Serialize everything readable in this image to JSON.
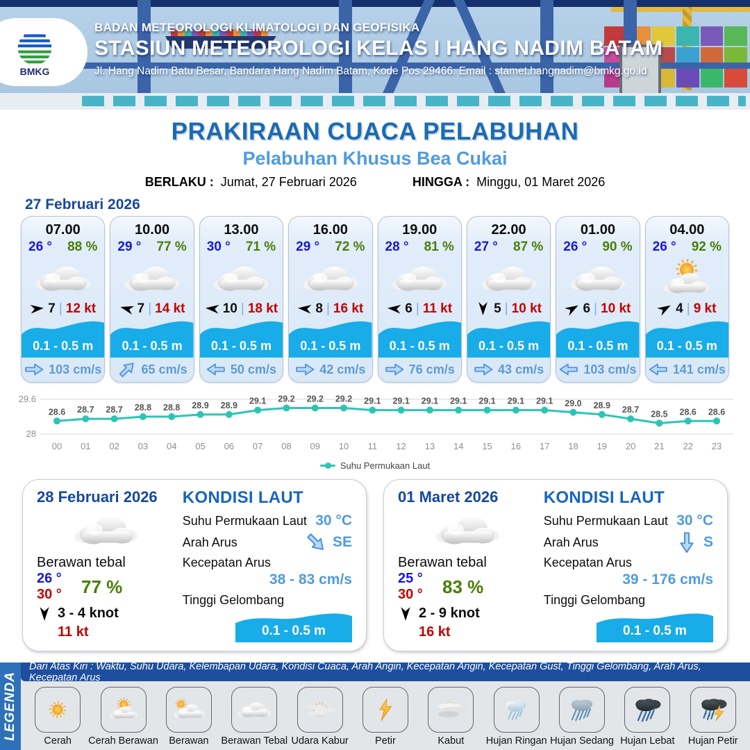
{
  "header": {
    "agency": "BADAN METEOROLOGI KLIMATOLOGI DAN GEOFISIKA",
    "station": "STASIUN METEOROLOGI KELAS I HANG NADIM BATAM",
    "address": "Jl. Hang Nadim Batu Besar, Bandara Hang Nadim Batam, Kode Pos 29466. Email : stamet.hangnadim@bmkg.go.id",
    "logo_label": "BMKG"
  },
  "title": {
    "main": "PRAKIRAAN CUACA PELABUHAN",
    "subtitle": "Pelabuhan Khusus Bea Cukai",
    "berlaku_label": "BERLAKU :",
    "berlaku_value": "Jumat, 27 Februari 2026",
    "hingga_label": "HINGGA :",
    "hingga_value": "Minggu, 01 Maret 2026"
  },
  "forecast": {
    "date": "27 Februari 2026",
    "cards": [
      {
        "time": "07.00",
        "temp": "26 °",
        "hum": "88 %",
        "icon": "cloud",
        "wind_deg": -5,
        "wind": "7",
        "gust": "12 kt",
        "wave": "0.1 - 0.5 m",
        "cur_deg": 0,
        "cur": "103 cm/s"
      },
      {
        "time": "10.00",
        "temp": "29 °",
        "hum": "77 %",
        "icon": "cloud",
        "wind_deg": 195,
        "wind": "7",
        "gust": "14 kt",
        "wave": "0.1 - 0.5 m",
        "cur_deg": -45,
        "cur": "65 cm/s"
      },
      {
        "time": "13.00",
        "temp": "30 °",
        "hum": "71 %",
        "icon": "cloud",
        "wind_deg": 185,
        "wind": "10",
        "gust": "18 kt",
        "wave": "0.1 - 0.5 m",
        "cur_deg": 180,
        "cur": "50 cm/s"
      },
      {
        "time": "16.00",
        "temp": "29 °",
        "hum": "72 %",
        "icon": "cloud",
        "wind_deg": 185,
        "wind": "8",
        "gust": "16 kt",
        "wave": "0.1 - 0.5 m",
        "cur_deg": 0,
        "cur": "42 cm/s"
      },
      {
        "time": "19.00",
        "temp": "28 °",
        "hum": "81 %",
        "icon": "cloud",
        "wind_deg": 185,
        "wind": "6",
        "gust": "11 kt",
        "wave": "0.1 - 0.5 m",
        "cur_deg": 0,
        "cur": "76 cm/s"
      },
      {
        "time": "22.00",
        "temp": "27 °",
        "hum": "87 %",
        "icon": "cloud",
        "wind_deg": 90,
        "wind": "5",
        "gust": "10 kt",
        "wave": "0.1 - 0.5 m",
        "cur_deg": 0,
        "cur": "43 cm/s"
      },
      {
        "time": "01.00",
        "temp": "26 °",
        "hum": "90 %",
        "icon": "cloud",
        "wind_deg": -30,
        "wind": "6",
        "gust": "10 kt",
        "wave": "0.1 - 0.5 m",
        "cur_deg": 180,
        "cur": "103 cm/s"
      },
      {
        "time": "04.00",
        "temp": "26 °",
        "hum": "92 %",
        "icon": "sun-cloud",
        "wind_deg": -30,
        "wind": "4",
        "gust": "9 kt",
        "wave": "0.1 - 0.5 m",
        "cur_deg": 180,
        "cur": "141 cm/s"
      }
    ]
  },
  "chart_data": {
    "type": "line",
    "x": [
      "00",
      "01",
      "02",
      "03",
      "04",
      "05",
      "06",
      "07",
      "08",
      "09",
      "10",
      "11",
      "12",
      "13",
      "14",
      "15",
      "16",
      "17",
      "18",
      "19",
      "20",
      "21",
      "22",
      "23"
    ],
    "series": [
      {
        "name": "Suhu Permukaan Laut",
        "values": [
          28.6,
          28.7,
          28.7,
          28.8,
          28.8,
          28.9,
          28.9,
          29.1,
          29.2,
          29.2,
          29.2,
          29.1,
          29.1,
          29.1,
          29.1,
          29.1,
          29.1,
          29.1,
          29.0,
          28.9,
          28.7,
          28.5,
          28.6,
          28.6
        ]
      }
    ],
    "ylim": [
      28,
      29.6
    ],
    "yticks": [
      28,
      29.6
    ],
    "line_color": "#2cc5b4",
    "grid": true,
    "legend_position": "bottom"
  },
  "daily": [
    {
      "date": "28 Februari 2026",
      "icon": "cloud",
      "condition": "Berawan tebal",
      "temp_min": "26 °",
      "temp_max": "30 °",
      "humidity": "77 %",
      "wind_deg": 90,
      "wind": "3 - 4 knot",
      "gust": "11 kt",
      "sea": {
        "title": "KONDISI LAUT",
        "sst_label": "Suhu Permukaan Laut",
        "sst": "30 °C",
        "dir_label": "Arah Arus",
        "dir": "SE",
        "dir_deg": 45,
        "speed_label": "Kecepatan Arus",
        "speed": "38 - 83 cm/s",
        "wave_label": "Tinggi Gelombang",
        "wave": "0.1 - 0.5 m"
      }
    },
    {
      "date": "01 Maret 2026",
      "icon": "cloud",
      "condition": "Berawan tebal",
      "temp_min": "25 °",
      "temp_max": "30 °",
      "humidity": "83 %",
      "wind_deg": 90,
      "wind": "2 - 9 knot",
      "gust": "16 kt",
      "sea": {
        "title": "KONDISI LAUT",
        "sst_label": "Suhu Permukaan Laut",
        "sst": "30 °C",
        "dir_label": "Arah Arus",
        "dir": "S",
        "dir_deg": 90,
        "speed_label": "Kecepatan Arus",
        "speed": "39 - 176 cm/s",
        "wave_label": "Tinggi Gelombang",
        "wave": "0.1 - 0.5 m"
      }
    }
  ],
  "legend": {
    "title": "LEGENDA",
    "note": "Dari Atas Kiri : Waktu, Suhu Udara, Kelembapan Udara, Kondisi Cuaca, Arah Angin, Kecepatan Angin, Kecepatan Gust, Tinggi Gelombang, Arah Arus, Kecepatan Arus",
    "items": [
      {
        "label": "Cerah",
        "icon": "sun"
      },
      {
        "label": "Cerah Berawan",
        "icon": "sun-cloud"
      },
      {
        "label": "Berawan",
        "icon": "cloud-sun"
      },
      {
        "label": "Berawan Tebal",
        "icon": "cloud"
      },
      {
        "label": "Udara Kabur",
        "icon": "haze"
      },
      {
        "label": "Petir",
        "icon": "bolt"
      },
      {
        "label": "Kabut",
        "icon": "fog"
      },
      {
        "label": "Hujan Ringan",
        "icon": "rain-light"
      },
      {
        "label": "Hujan Sedang",
        "icon": "rain-med"
      },
      {
        "label": "Hujan Lebat",
        "icon": "rain-heavy"
      },
      {
        "label": "Hujan Petir",
        "icon": "storm"
      }
    ]
  },
  "colors": {
    "accent_dark_blue": "#1c6ab2",
    "accent_light_blue": "#4f9be0",
    "wave_blue": "#18ace8",
    "chart_teal": "#2cc5b4",
    "temp_blue": "#1717dd",
    "humidity_green": "#4a7d08",
    "gust_red": "#c40000",
    "header_navy": "#16306e",
    "legend_bar_blue": "#1d4f9e",
    "legend_strip_blue": "#2e71b8"
  }
}
